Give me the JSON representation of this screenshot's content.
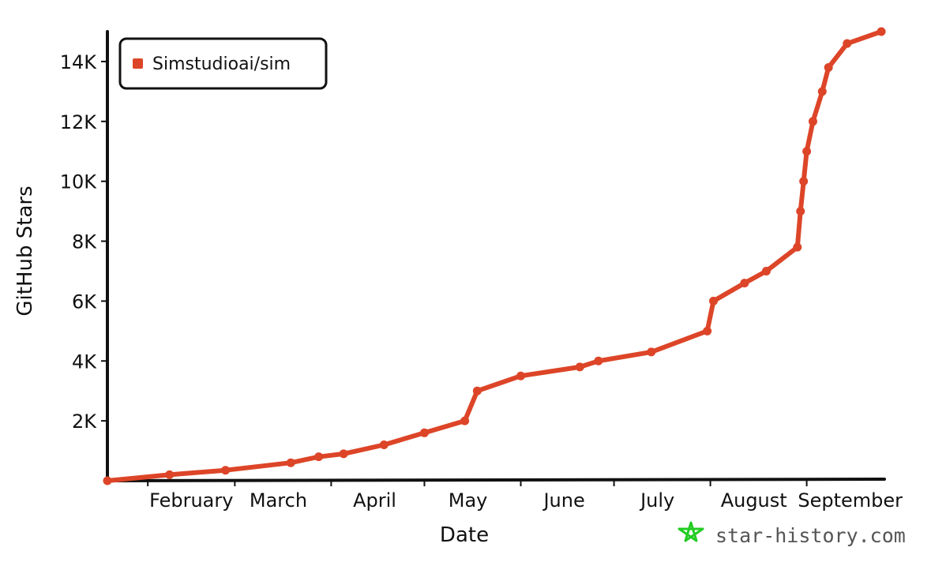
{
  "chart_data": {
    "type": "line",
    "title": "",
    "xlabel": "Date",
    "ylabel": "GitHub Stars",
    "x_tick_labels": [
      "February",
      "March",
      "April",
      "May",
      "June",
      "July",
      "August",
      "September"
    ],
    "y_tick_labels": [
      "2K",
      "4K",
      "6K",
      "8K",
      "10K",
      "12K",
      "14K"
    ],
    "y_ticks": [
      2000,
      4000,
      6000,
      8000,
      10000,
      12000,
      14000
    ],
    "x_range": [
      "2025-01-19",
      "2025-09-26"
    ],
    "ylim": [
      0,
      15000
    ],
    "grid": false,
    "legend_position": "top-left",
    "series": [
      {
        "name": "Simstudioai/sim",
        "color": "#dd4528",
        "points": [
          {
            "x": "2025-01-19",
            "y": 0
          },
          {
            "x": "2025-02-08",
            "y": 200
          },
          {
            "x": "2025-02-26",
            "y": 350
          },
          {
            "x": "2025-03-19",
            "y": 600
          },
          {
            "x": "2025-03-28",
            "y": 800
          },
          {
            "x": "2025-04-05",
            "y": 900
          },
          {
            "x": "2025-04-18",
            "y": 1200
          },
          {
            "x": "2025-05-01",
            "y": 1600
          },
          {
            "x": "2025-05-14",
            "y": 2000
          },
          {
            "x": "2025-05-18",
            "y": 3000
          },
          {
            "x": "2025-06-01",
            "y": 3500
          },
          {
            "x": "2025-06-20",
            "y": 3800
          },
          {
            "x": "2025-06-26",
            "y": 4000
          },
          {
            "x": "2025-07-13",
            "y": 4300
          },
          {
            "x": "2025-07-31",
            "y": 5000
          },
          {
            "x": "2025-08-02",
            "y": 6000
          },
          {
            "x": "2025-08-12",
            "y": 6600
          },
          {
            "x": "2025-08-19",
            "y": 7000
          },
          {
            "x": "2025-08-29",
            "y": 7800
          },
          {
            "x": "2025-08-30",
            "y": 9000
          },
          {
            "x": "2025-08-31",
            "y": 10000
          },
          {
            "x": "2025-09-01",
            "y": 11000
          },
          {
            "x": "2025-09-03",
            "y": 12000
          },
          {
            "x": "2025-09-06",
            "y": 13000
          },
          {
            "x": "2025-09-08",
            "y": 13800
          },
          {
            "x": "2025-09-14",
            "y": 14600
          },
          {
            "x": "2025-09-25",
            "y": 15000
          }
        ]
      }
    ]
  },
  "legend": {
    "series_label": "Simstudioai/sim",
    "marker_color": "#dd4528"
  },
  "watermark": {
    "text": "star-history.com",
    "icon": "star-icon",
    "icon_color": "#22cc22"
  }
}
